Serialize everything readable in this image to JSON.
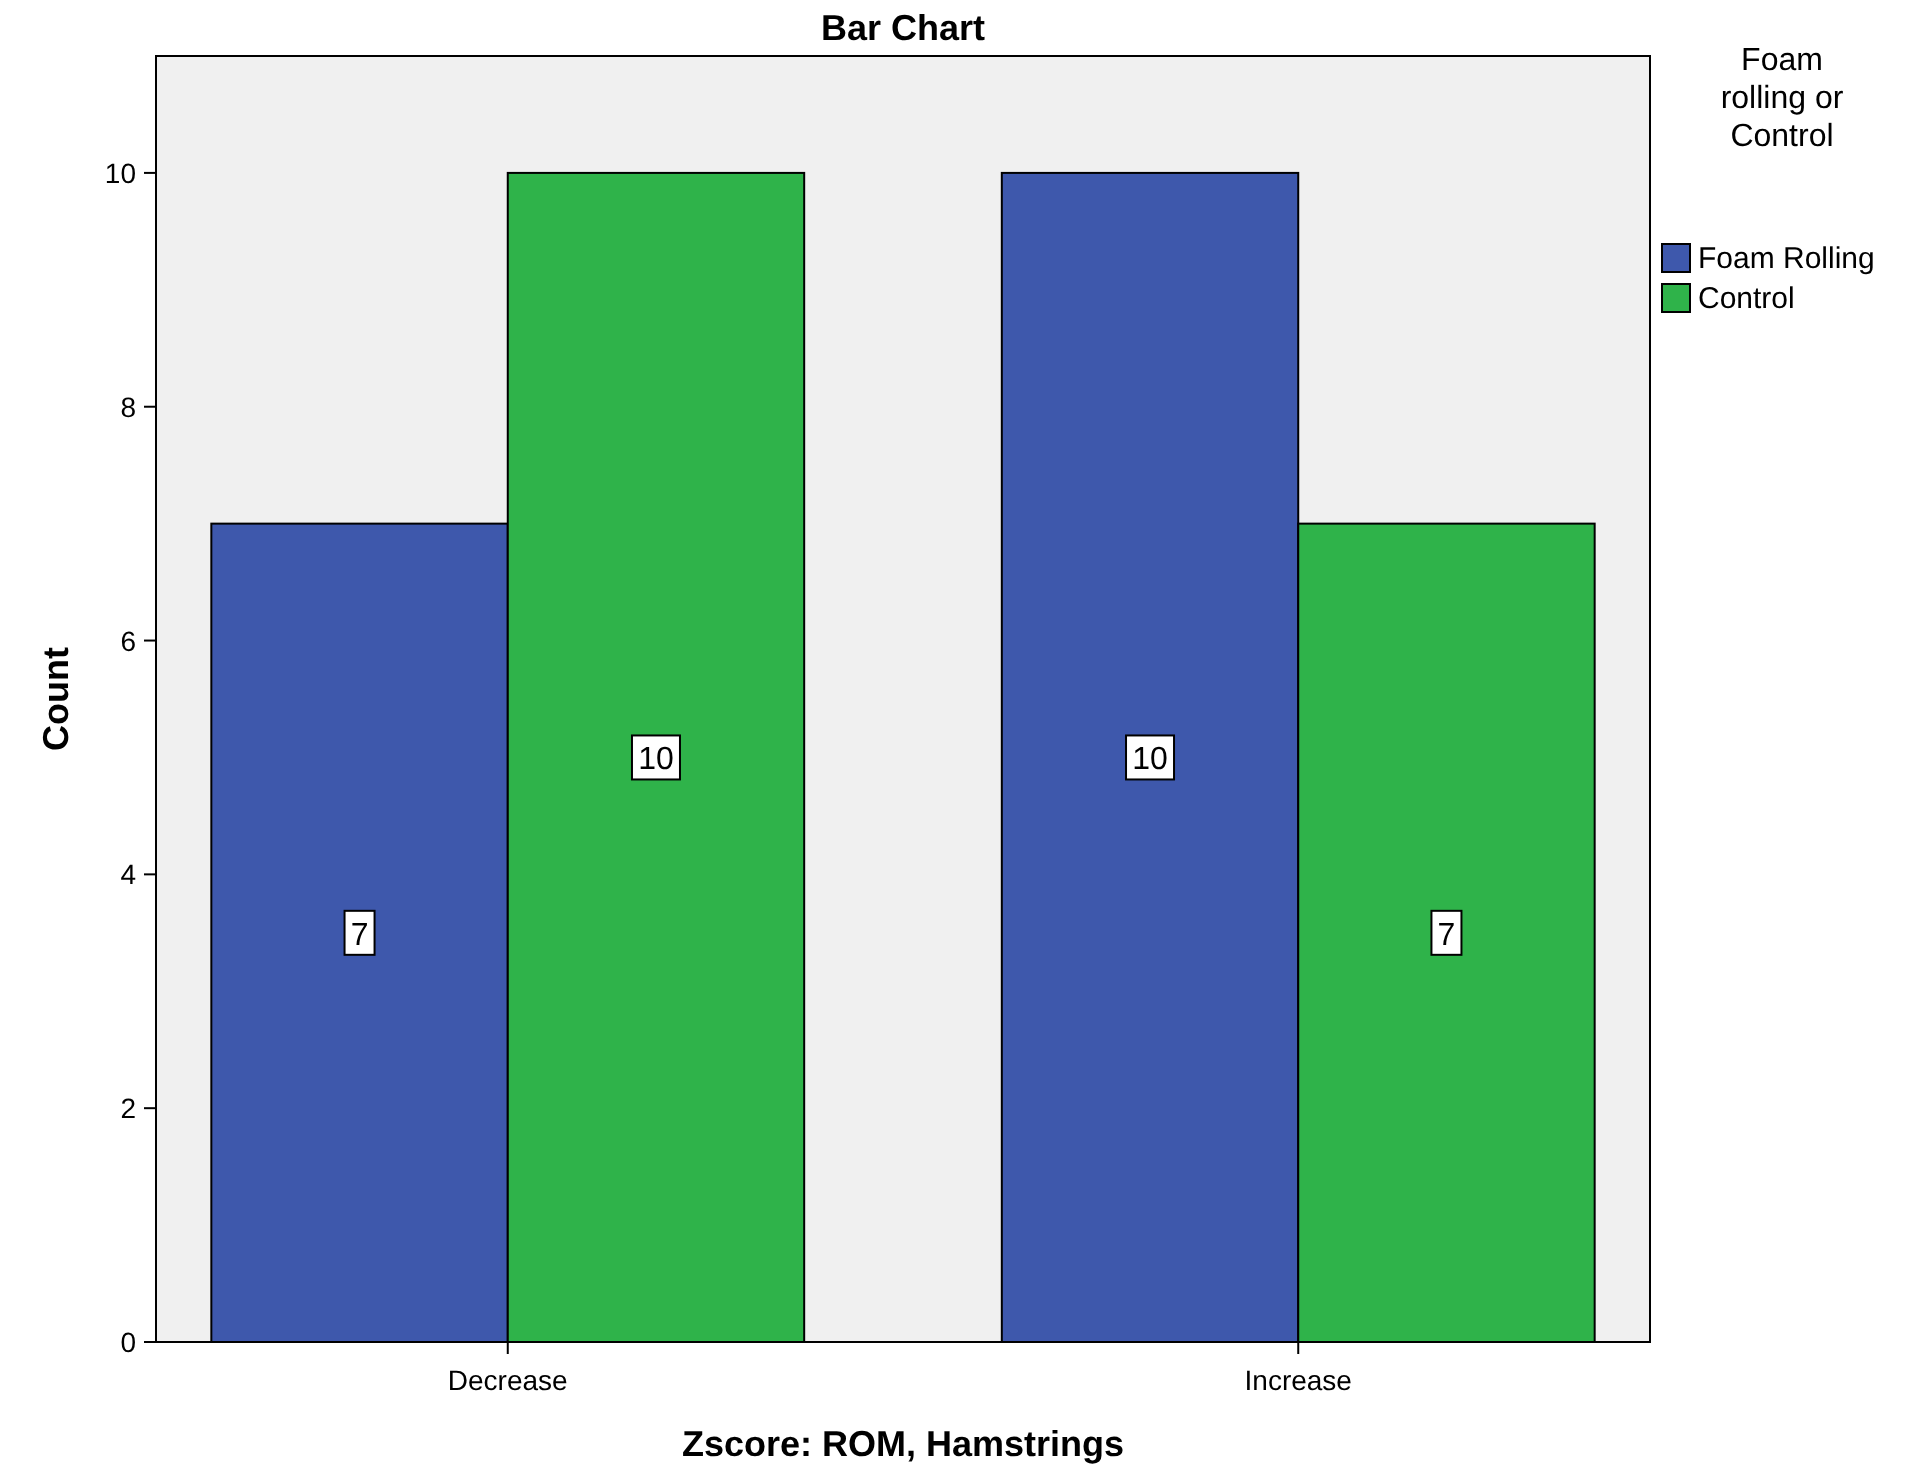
{
  "chart_data": {
    "type": "bar",
    "title": "Bar Chart",
    "xlabel": "Zscore:  ROM, Hamstrings",
    "ylabel": "Count",
    "legend_title": "Foam rolling or Control",
    "categories": [
      "Decrease",
      "Increase"
    ],
    "series": [
      {
        "name": "Foam Rolling",
        "color": "#3e58ac",
        "values": [
          7,
          10
        ]
      },
      {
        "name": "Control",
        "color": "#2fb34a",
        "values": [
          10,
          7
        ]
      }
    ],
    "ylim": [
      0,
      11
    ],
    "yticks": [
      0,
      2,
      4,
      6,
      8,
      10
    ],
    "grid": false,
    "legend": "right",
    "data_labels": true
  }
}
